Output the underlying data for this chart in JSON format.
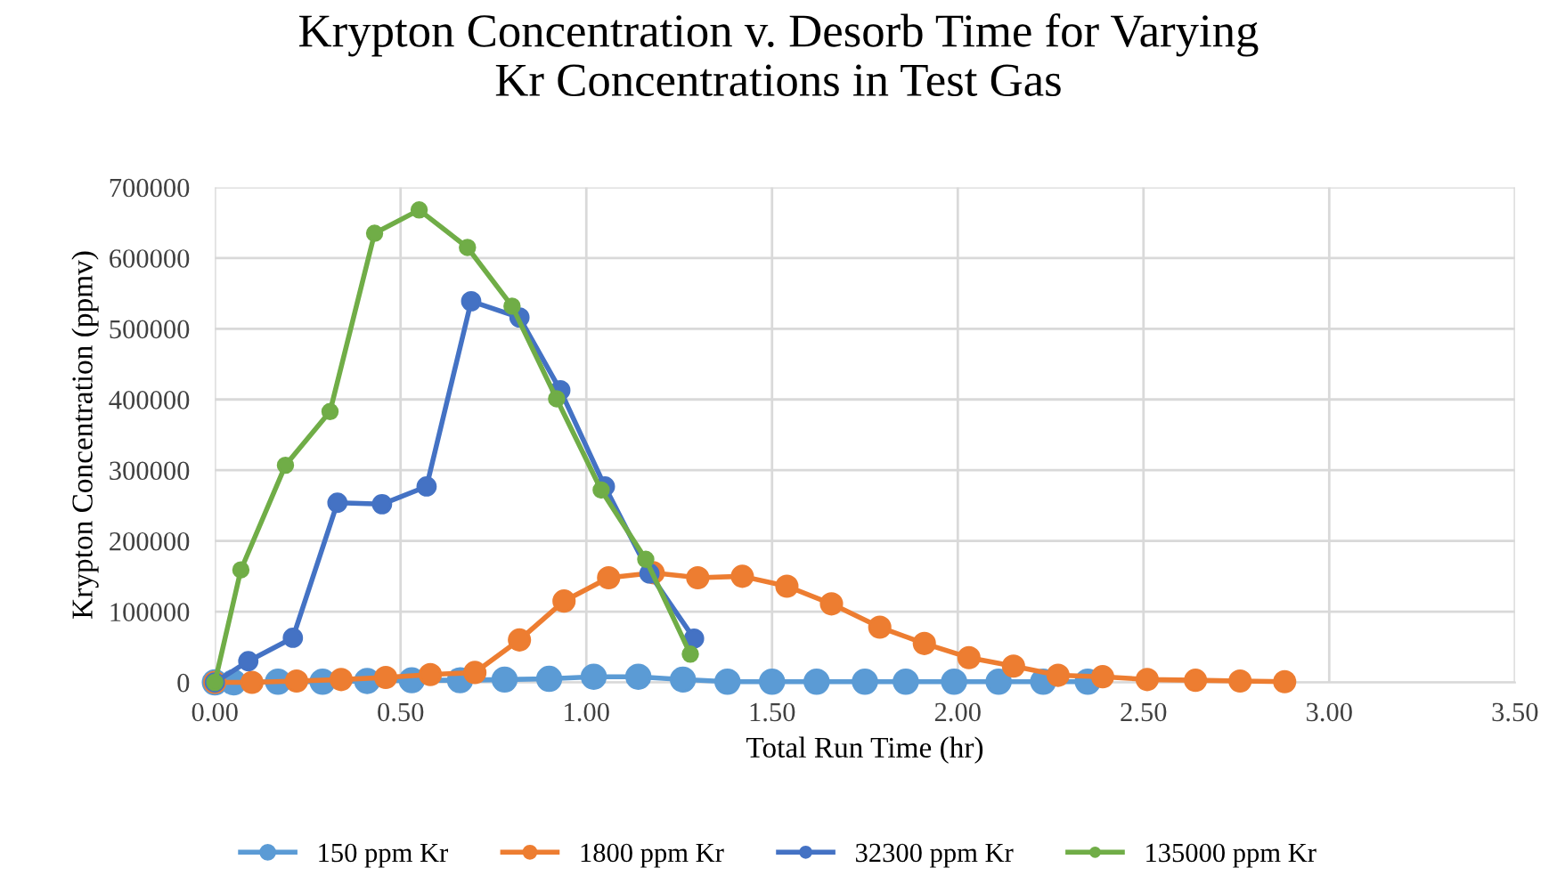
{
  "chart_data": {
    "type": "line",
    "title": "Krypton Concentration v. Desorb Time for Varying\nKr Concentrations in Test Gas",
    "xlabel": "Total Run Time (hr)",
    "ylabel": "Krypton Concentration (ppmv)",
    "xlim": [
      0,
      3.5
    ],
    "xticks": [
      {
        "value": 0,
        "label": "0.00"
      },
      {
        "value": 0.5,
        "label": "0.50"
      },
      {
        "value": 1,
        "label": "1.00"
      },
      {
        "value": 1.5,
        "label": "1.50"
      },
      {
        "value": 2,
        "label": "2.00"
      },
      {
        "value": 2.5,
        "label": "2.50"
      },
      {
        "value": 3,
        "label": "3.00"
      },
      {
        "value": 3.5,
        "label": "3.50"
      }
    ],
    "ylim": [
      0,
      700000
    ],
    "yticks": [
      0,
      100000,
      200000,
      300000,
      400000,
      500000,
      600000,
      700000
    ],
    "grid": true,
    "legend": "bottom",
    "marker": "circle",
    "line_style": "solid",
    "series": [
      {
        "name": "150 ppm Kr",
        "color": "#5b9bd5",
        "x": [
          0,
          0.05,
          0.17,
          0.29,
          0.41,
          0.53,
          0.66,
          0.78,
          0.9,
          1.02,
          1.14,
          1.26,
          1.38,
          1.5,
          1.62,
          1.75,
          1.86,
          1.99,
          2.11,
          2.23,
          2.35
        ],
        "values": [
          0,
          0,
          1000,
          1000,
          2000,
          3000,
          3000,
          4000,
          5000,
          8000,
          8000,
          4000,
          1000,
          1000,
          1000,
          1000,
          1000,
          1000,
          1000,
          1000,
          1000
        ]
      },
      {
        "name": "1800 ppm Kr",
        "color": "#ed7d31",
        "x": [
          0,
          0.1,
          0.22,
          0.34,
          0.46,
          0.58,
          0.7,
          0.82,
          0.94,
          1.06,
          1.18,
          1.3,
          1.42,
          1.54,
          1.66,
          1.79,
          1.91,
          2.03,
          2.15,
          2.27,
          2.39,
          2.51,
          2.64,
          2.76,
          2.88
        ],
        "values": [
          0,
          0,
          2000,
          4000,
          7000,
          11000,
          14000,
          60000,
          115000,
          148000,
          155000,
          148000,
          150000,
          136000,
          111000,
          78000,
          55000,
          35000,
          23000,
          10000,
          8000,
          4000,
          3000,
          2000,
          1000
        ]
      },
      {
        "name": "32300 ppm Kr",
        "color": "#4472c4",
        "x": [
          0,
          0.09,
          0.21,
          0.33,
          0.45,
          0.57,
          0.69,
          0.82,
          0.93,
          1.05,
          1.17,
          1.29
        ],
        "values": [
          0,
          30000,
          63000,
          254000,
          252000,
          277000,
          539000,
          516000,
          413000,
          277000,
          154000,
          62000
        ]
      },
      {
        "name": "135000 ppm Kr",
        "color": "#70ad47",
        "x": [
          0,
          0.07,
          0.19,
          0.31,
          0.43,
          0.55,
          0.68,
          0.8,
          0.92,
          1.04,
          1.16,
          1.28
        ],
        "values": [
          0,
          159000,
          307000,
          383000,
          635000,
          668000,
          615000,
          532000,
          401000,
          272000,
          174000,
          40000
        ]
      }
    ]
  }
}
